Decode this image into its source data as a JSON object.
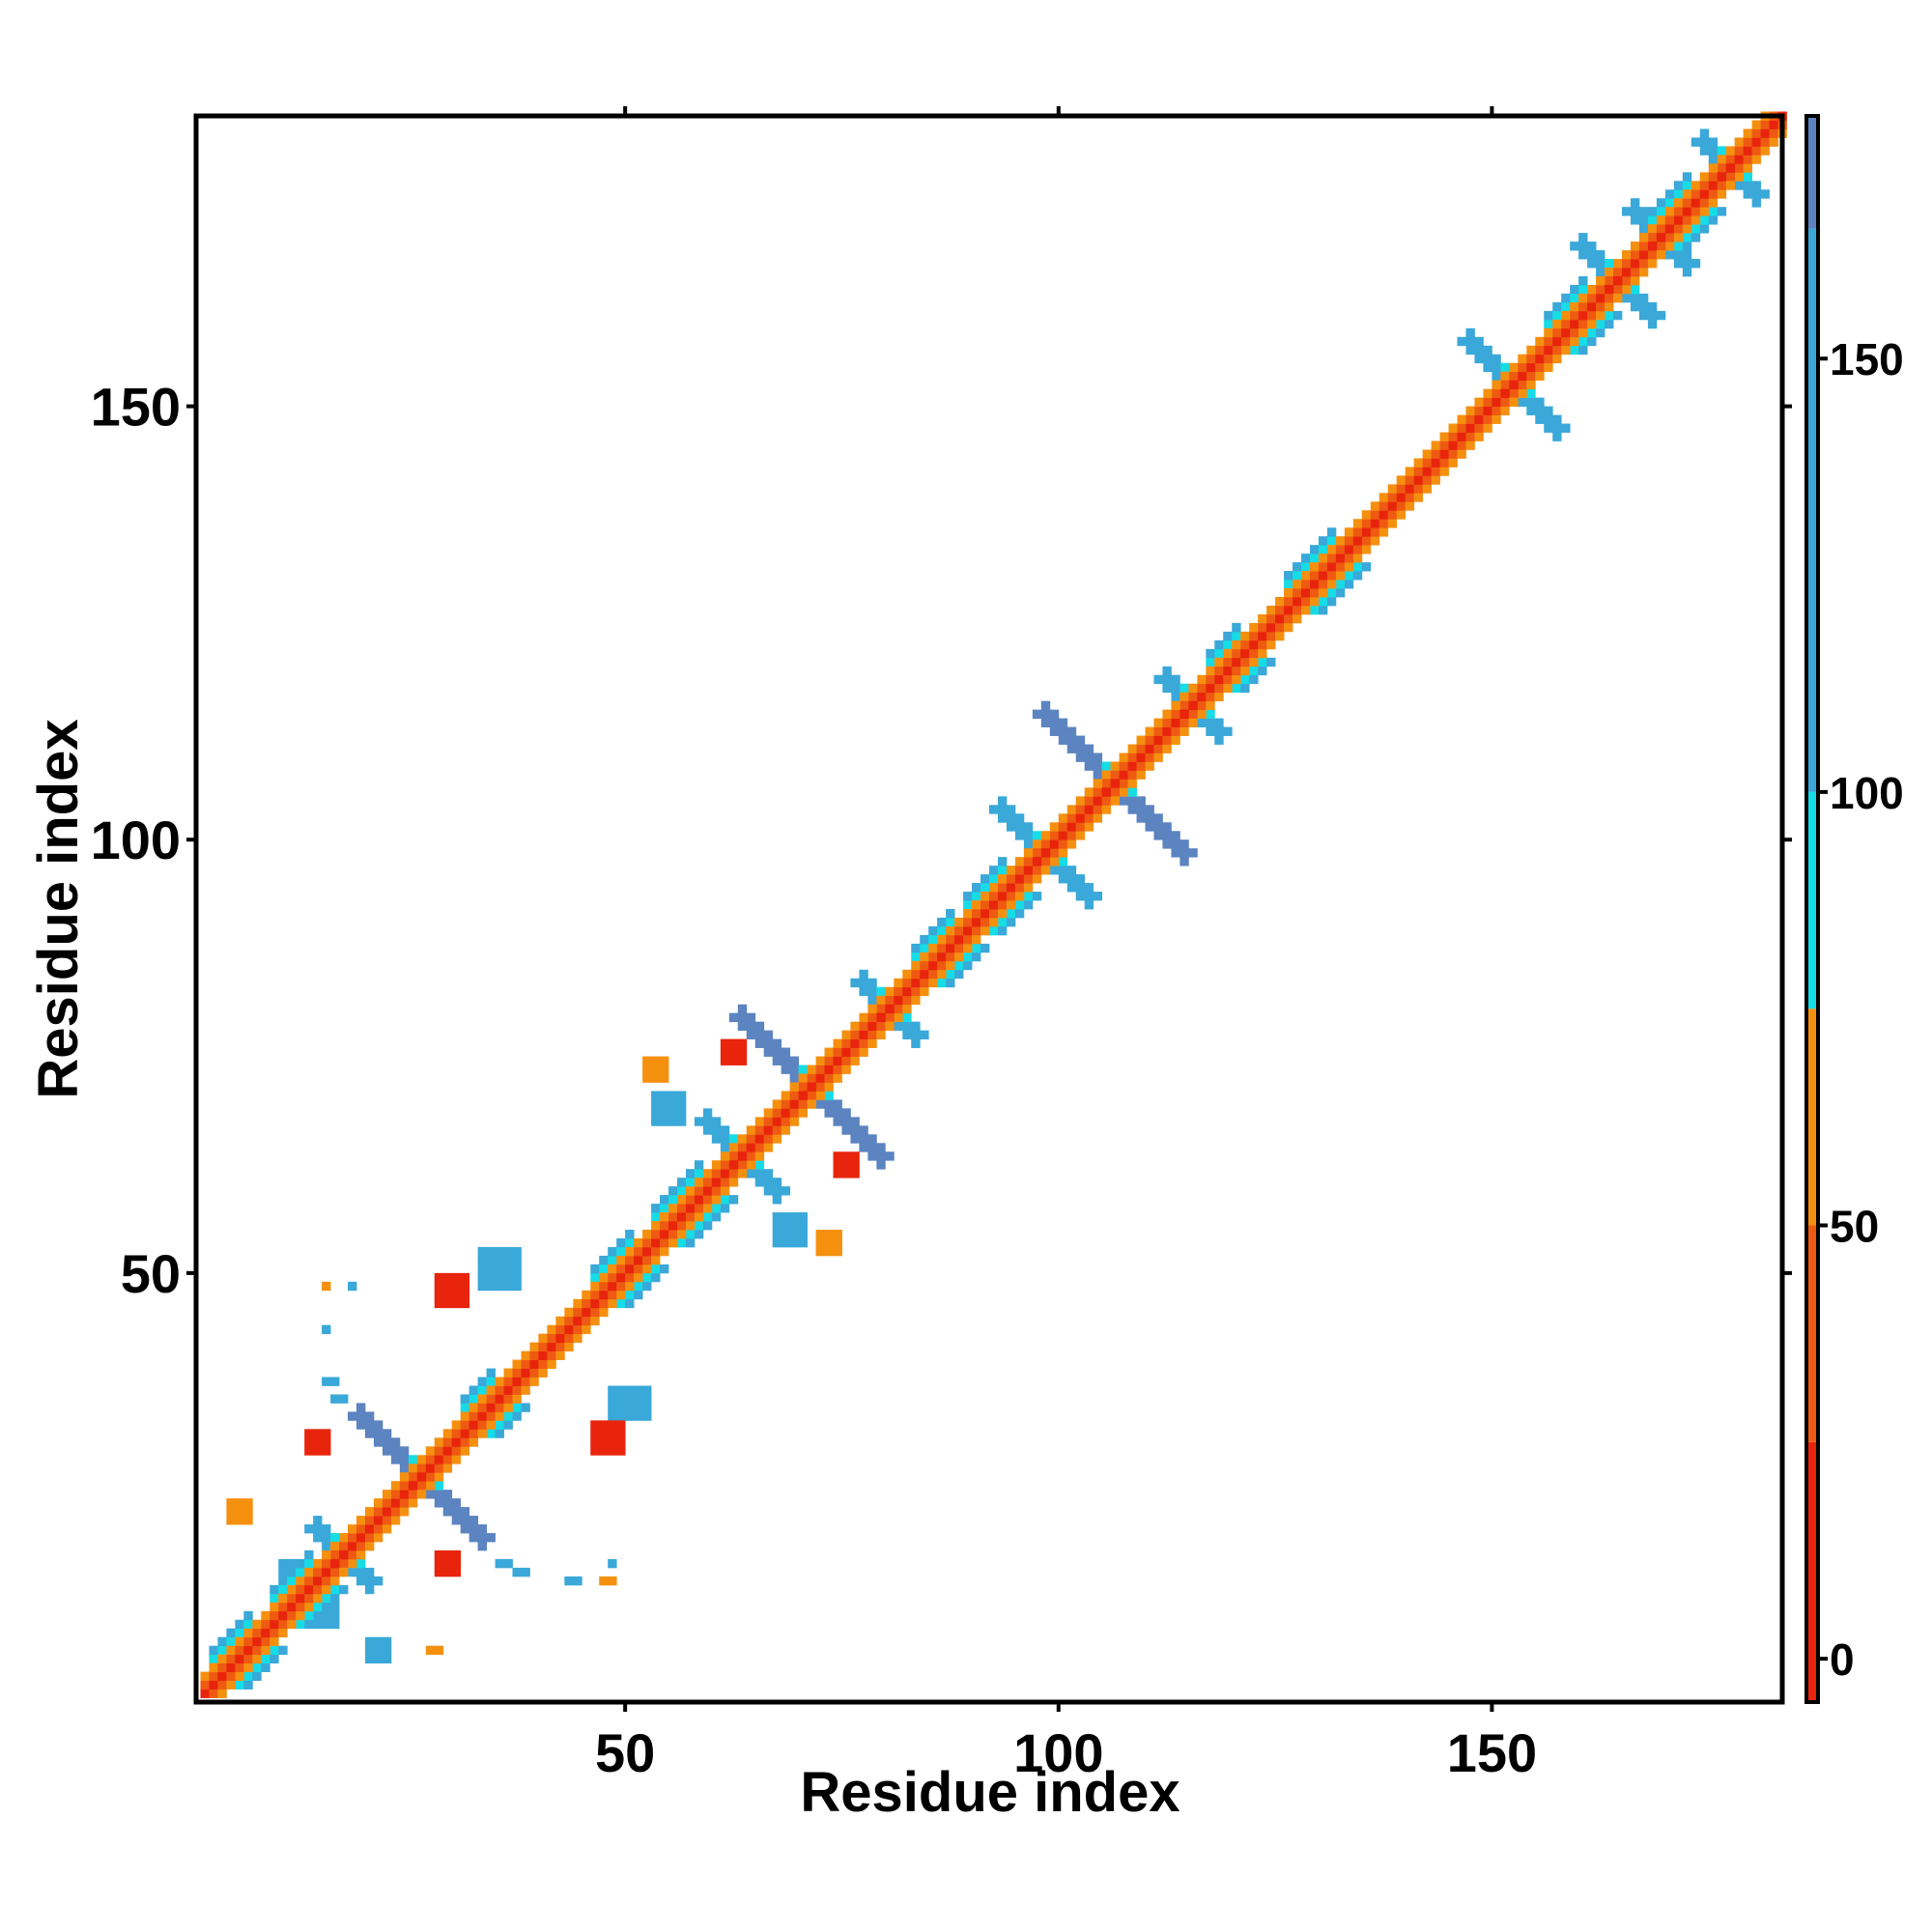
{
  "chart_data": {
    "type": "heatmap",
    "title": "",
    "xlabel": "Residue index",
    "ylabel": "Residue index",
    "xlim": [
      1,
      183
    ],
    "ylim": [
      1,
      183
    ],
    "x_ticks": [
      50,
      100,
      150
    ],
    "y_ticks": [
      50,
      100,
      150
    ],
    "grid": false,
    "n_residues": 183,
    "description_of_cells": "contact map; cells colored by value",
    "colorbar": {
      "range": [
        -5,
        178
      ],
      "ticks": [
        0,
        50,
        100,
        150
      ],
      "bands": [
        {
          "from": -5,
          "to": 25,
          "color": "#e8240c"
        },
        {
          "from": 25,
          "to": 50,
          "color": "#ee5a12"
        },
        {
          "from": 50,
          "to": 75,
          "color": "#f5900f"
        },
        {
          "from": 75,
          "to": 100,
          "color": "#16dce6"
        },
        {
          "from": 100,
          "to": 165,
          "color": "#3aa8d8"
        },
        {
          "from": 165,
          "to": 178,
          "color": "#5b84c0"
        },
        {
          "from": 178,
          "to": 183,
          "color": "#ffffff"
        }
      ]
    },
    "diagonal": {
      "main_value": 8,
      "offsets": [
        {
          "offset": 1,
          "value": 40
        },
        {
          "offset": 2,
          "value": 62
        }
      ],
      "helical_segments": [
        [
          2,
          6
        ],
        [
          9,
          13
        ],
        [
          31,
          34
        ],
        [
          46,
          50
        ],
        [
          53,
          58
        ],
        [
          83,
          87
        ],
        [
          89,
          93
        ],
        [
          117,
          120
        ],
        [
          126,
          131
        ],
        [
          156,
          160
        ],
        [
          168,
          172
        ]
      ],
      "helical_offset_values": [
        {
          "offset": 3,
          "value": 88
        },
        {
          "offset": 4,
          "value": 110
        }
      ]
    },
    "crosses": [
      {
        "center": 26,
        "halfwidth": 7,
        "value": 170
      },
      {
        "center": 17,
        "halfwidth": 3,
        "value": 150
      },
      {
        "center": 71,
        "halfwidth": 8,
        "value": 170
      },
      {
        "center": 63,
        "halfwidth": 4,
        "value": 130
      },
      {
        "center": 80,
        "halfwidth": 3,
        "value": 120
      },
      {
        "center": 98,
        "halfwidth": 5,
        "value": 160
      },
      {
        "center": 106,
        "halfwidth": 8,
        "value": 168
      },
      {
        "center": 115,
        "halfwidth": 3,
        "value": 130
      },
      {
        "center": 152,
        "halfwidth": 5,
        "value": 140
      },
      {
        "center": 164,
        "halfwidth": 4,
        "value": 160
      },
      {
        "center": 169,
        "halfwidth": 3,
        "value": 150
      },
      {
        "center": 177,
        "halfwidth": 3,
        "value": 145
      }
    ],
    "blobs": [
      {
        "x": [
          33,
          37
        ],
        "y": [
          48,
          52
        ],
        "value": 110
      },
      {
        "x": [
          28,
          31
        ],
        "y": [
          46,
          49
        ],
        "value": 20
      },
      {
        "x": [
          48,
          52
        ],
        "y": [
          33,
          36
        ],
        "value": 110
      },
      {
        "x": [
          46,
          49
        ],
        "y": [
          29,
          32
        ],
        "value": 20
      },
      {
        "x": [
          10,
          12
        ],
        "y": [
          14,
          16
        ],
        "value": 150
      },
      {
        "x": [
          14,
          16
        ],
        "y": [
          9,
          11
        ],
        "value": 150
      },
      {
        "x": [
          20,
          22
        ],
        "y": [
          5,
          7
        ],
        "value": 150
      },
      {
        "x": [
          4,
          6
        ],
        "y": [
          21,
          23
        ],
        "value": 60
      },
      {
        "x": [
          13,
          15
        ],
        "y": [
          29,
          31
        ],
        "value": 20
      },
      {
        "x": [
          28,
          30
        ],
        "y": [
          15,
          17
        ],
        "value": 20
      },
      {
        "x": [
          53,
          56
        ],
        "y": [
          67,
          70
        ],
        "value": 110
      },
      {
        "x": [
          67,
          70
        ],
        "y": [
          53,
          56
        ],
        "value": 110
      },
      {
        "x": [
          61,
          63
        ],
        "y": [
          74,
          76
        ],
        "value": 20
      },
      {
        "x": [
          74,
          76
        ],
        "y": [
          61,
          63
        ],
        "value": 20
      },
      {
        "x": [
          52,
          54
        ],
        "y": [
          72,
          74
        ],
        "value": 60
      },
      {
        "x": [
          72,
          74
        ],
        "y": [
          52,
          54
        ],
        "value": 60
      },
      {
        "x": [
          15,
          15
        ],
        "y": [
          48,
          48
        ],
        "value": 60
      },
      {
        "x": [
          18,
          18
        ],
        "y": [
          48,
          48
        ],
        "value": 150
      },
      {
        "x": [
          15,
          15
        ],
        "y": [
          43,
          43
        ],
        "value": 150
      },
      {
        "x": [
          15,
          16
        ],
        "y": [
          37,
          37
        ],
        "value": 110
      },
      {
        "x": [
          16,
          17
        ],
        "y": [
          35,
          35
        ],
        "value": 150
      },
      {
        "x": [
          37,
          38
        ],
        "y": [
          15,
          15
        ],
        "value": 110
      },
      {
        "x": [
          43,
          44
        ],
        "y": [
          14,
          14
        ],
        "value": 150
      },
      {
        "x": [
          47,
          48
        ],
        "y": [
          14,
          14
        ],
        "value": 60
      },
      {
        "x": [
          48,
          48
        ],
        "y": [
          16,
          16
        ],
        "value": 110
      },
      {
        "x": [
          35,
          36
        ],
        "y": [
          16,
          16
        ],
        "value": 110
      },
      {
        "x": [
          27,
          28
        ],
        "y": [
          6,
          6
        ],
        "value": 60
      }
    ]
  }
}
